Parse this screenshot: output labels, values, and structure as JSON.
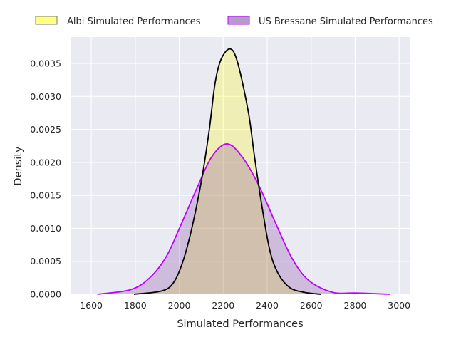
{
  "chart_data": {
    "type": "area",
    "title": "",
    "xlabel": "Simulated Performances",
    "ylabel": "Density",
    "xlim": [
      1509,
      3048
    ],
    "ylim": [
      0,
      0.0039
    ],
    "xticks": [
      1600,
      1800,
      2000,
      2200,
      2400,
      2600,
      2800,
      3000
    ],
    "xtick_labels": [
      "1600",
      "1800",
      "2000",
      "2200",
      "2400",
      "2600",
      "2800",
      "3000"
    ],
    "yticks": [
      0,
      0.0005,
      0.001,
      0.0015,
      0.002,
      0.0025,
      0.003,
      0.0035
    ],
    "ytick_labels": [
      "0.0000",
      "0.0005",
      "0.0010",
      "0.0015",
      "0.0020",
      "0.0025",
      "0.0030",
      "0.0035"
    ],
    "grid": true,
    "legend_position": "top, outside, horizontal",
    "series": [
      {
        "name": "Albi Simulated Performances",
        "line_color": "#000000",
        "fill_color": "rgba(255,255,0,0.25)",
        "legend_patch": "#ffff80",
        "legend_edge": "#777777",
        "x": [
          1794,
          1920,
          1974,
          2017,
          2060,
          2103,
          2136,
          2163,
          2190,
          2231,
          2265,
          2314,
          2341,
          2373,
          2411,
          2449,
          2503,
          2568,
          2644
        ],
        "y": [
          0,
          5e-05,
          0.000176,
          0.0005,
          0.00104,
          0.00176,
          0.00248,
          0.0032,
          0.00356,
          0.00372,
          0.00352,
          0.00277,
          0.00212,
          0.0014,
          0.00068,
          0.00032,
          0.0001,
          3e-05,
          0
        ]
      },
      {
        "name": "US Bressane Simulated Performances",
        "line_color": "#bf00ff",
        "fill_color": "rgba(120,50,150,0.25)",
        "legend_patch": "#b39cc8",
        "legend_edge": "#bf00ff",
        "x": [
          1628,
          1779,
          1866,
          1941,
          2006,
          2082,
          2147,
          2217,
          2287,
          2362,
          2438,
          2514,
          2589,
          2697,
          2805,
          2957
        ],
        "y": [
          0,
          7e-05,
          0.00025,
          0.00057,
          0.00104,
          0.00162,
          0.00208,
          0.00228,
          0.00208,
          0.00165,
          0.00108,
          0.00054,
          0.00021,
          3e-05,
          2e-05,
          0
        ]
      }
    ]
  }
}
